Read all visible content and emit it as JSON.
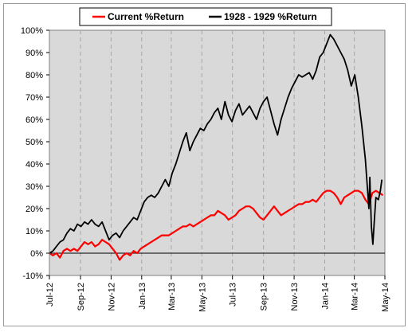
{
  "chart_data": {
    "type": "line",
    "title": "",
    "xlabel": "",
    "ylabel": "",
    "ylim": [
      -10,
      100
    ],
    "y_ticks": [
      -10,
      0,
      10,
      20,
      30,
      40,
      50,
      60,
      70,
      80,
      90,
      100
    ],
    "y_tick_labels": [
      "-10%",
      "0%",
      "10%",
      "20%",
      "30%",
      "40%",
      "50%",
      "60%",
      "70%",
      "80%",
      "90%",
      "100%"
    ],
    "x_tick_labels": [
      "Jul-12",
      "Sep-12",
      "Nov-12",
      "Jan-13",
      "Mar-13",
      "May-13",
      "Jul-13",
      "Sep-13",
      "Nov-13",
      "Jan-14",
      "Mar-14",
      "May-14"
    ],
    "x_ticks": [
      "2012-07-01",
      "2012-09-01",
      "2012-11-01",
      "2013-01-01",
      "2013-03-01",
      "2013-05-01",
      "2013-07-01",
      "2013-09-01",
      "2013-11-01",
      "2014-01-01",
      "2014-03-01",
      "2014-05-01"
    ],
    "xlim": [
      "2012-07-01",
      "2014-05-01"
    ],
    "grid": "vertical dashed",
    "legend_position": "top",
    "plot_background": "#d9d9d9",
    "series": [
      {
        "name": "Current %Return",
        "color": "#ff0000",
        "points": [
          [
            "2012-07-01",
            0
          ],
          [
            "2012-07-08",
            -1
          ],
          [
            "2012-07-15",
            0
          ],
          [
            "2012-07-22",
            -2
          ],
          [
            "2012-07-29",
            1
          ],
          [
            "2012-08-05",
            2
          ],
          [
            "2012-08-12",
            1
          ],
          [
            "2012-08-19",
            2
          ],
          [
            "2012-08-26",
            1
          ],
          [
            "2012-09-02",
            3
          ],
          [
            "2012-09-09",
            5
          ],
          [
            "2012-09-16",
            4
          ],
          [
            "2012-09-23",
            5
          ],
          [
            "2012-09-30",
            3
          ],
          [
            "2012-10-07",
            4
          ],
          [
            "2012-10-14",
            6
          ],
          [
            "2012-10-21",
            5
          ],
          [
            "2012-10-28",
            4
          ],
          [
            "2012-11-04",
            2
          ],
          [
            "2012-11-11",
            0
          ],
          [
            "2012-11-18",
            -3
          ],
          [
            "2012-11-25",
            -1
          ],
          [
            "2012-12-02",
            0
          ],
          [
            "2012-12-09",
            -1
          ],
          [
            "2012-12-16",
            1
          ],
          [
            "2012-12-23",
            0
          ],
          [
            "2012-12-30",
            2
          ],
          [
            "2013-01-06",
            3
          ],
          [
            "2013-01-13",
            4
          ],
          [
            "2013-01-20",
            5
          ],
          [
            "2013-01-27",
            6
          ],
          [
            "2013-02-03",
            7
          ],
          [
            "2013-02-10",
            8
          ],
          [
            "2013-02-17",
            8
          ],
          [
            "2013-02-24",
            8
          ],
          [
            "2013-03-03",
            9
          ],
          [
            "2013-03-10",
            10
          ],
          [
            "2013-03-17",
            11
          ],
          [
            "2013-03-24",
            12
          ],
          [
            "2013-03-31",
            12
          ],
          [
            "2013-04-07",
            13
          ],
          [
            "2013-04-14",
            12
          ],
          [
            "2013-04-21",
            13
          ],
          [
            "2013-04-28",
            14
          ],
          [
            "2013-05-05",
            15
          ],
          [
            "2013-05-12",
            16
          ],
          [
            "2013-05-19",
            17
          ],
          [
            "2013-05-26",
            17
          ],
          [
            "2013-06-02",
            19
          ],
          [
            "2013-06-09",
            18
          ],
          [
            "2013-06-16",
            17
          ],
          [
            "2013-06-23",
            15
          ],
          [
            "2013-06-30",
            16
          ],
          [
            "2013-07-07",
            17
          ],
          [
            "2013-07-14",
            19
          ],
          [
            "2013-07-21",
            20
          ],
          [
            "2013-07-28",
            21
          ],
          [
            "2013-08-04",
            21
          ],
          [
            "2013-08-11",
            20
          ],
          [
            "2013-08-18",
            18
          ],
          [
            "2013-08-25",
            16
          ],
          [
            "2013-09-01",
            15
          ],
          [
            "2013-09-08",
            17
          ],
          [
            "2013-09-15",
            19
          ],
          [
            "2013-09-22",
            21
          ],
          [
            "2013-09-29",
            19
          ],
          [
            "2013-10-06",
            17
          ],
          [
            "2013-10-13",
            18
          ],
          [
            "2013-10-20",
            19
          ],
          [
            "2013-10-27",
            20
          ],
          [
            "2013-11-03",
            21
          ],
          [
            "2013-11-10",
            22
          ],
          [
            "2013-11-17",
            22
          ],
          [
            "2013-11-24",
            23
          ],
          [
            "2013-12-01",
            23
          ],
          [
            "2013-12-08",
            24
          ],
          [
            "2013-12-15",
            23
          ],
          [
            "2013-12-22",
            25
          ],
          [
            "2013-12-29",
            27
          ],
          [
            "2014-01-05",
            28
          ],
          [
            "2014-01-12",
            28
          ],
          [
            "2014-01-19",
            27
          ],
          [
            "2014-01-26",
            25
          ],
          [
            "2014-02-02",
            22
          ],
          [
            "2014-02-09",
            25
          ],
          [
            "2014-02-16",
            26
          ],
          [
            "2014-02-23",
            27
          ],
          [
            "2014-03-02",
            28
          ],
          [
            "2014-03-09",
            28
          ],
          [
            "2014-03-16",
            27
          ],
          [
            "2014-03-23",
            24
          ],
          [
            "2014-03-30",
            22
          ],
          [
            "2014-04-06",
            27
          ],
          [
            "2014-04-13",
            28
          ],
          [
            "2014-04-20",
            27
          ],
          [
            "2014-04-27",
            26
          ]
        ]
      },
      {
        "name": "1928 - 1929 %Return",
        "color": "#000000",
        "points": [
          [
            "2012-07-01",
            0
          ],
          [
            "2012-07-08",
            1
          ],
          [
            "2012-07-15",
            3
          ],
          [
            "2012-07-22",
            5
          ],
          [
            "2012-07-29",
            6
          ],
          [
            "2012-08-05",
            9
          ],
          [
            "2012-08-12",
            11
          ],
          [
            "2012-08-19",
            10
          ],
          [
            "2012-08-26",
            13
          ],
          [
            "2012-09-02",
            12
          ],
          [
            "2012-09-09",
            14
          ],
          [
            "2012-09-16",
            13
          ],
          [
            "2012-09-23",
            15
          ],
          [
            "2012-09-30",
            13
          ],
          [
            "2012-10-07",
            12
          ],
          [
            "2012-10-14",
            14
          ],
          [
            "2012-10-21",
            10
          ],
          [
            "2012-10-28",
            6
          ],
          [
            "2012-11-04",
            8
          ],
          [
            "2012-11-11",
            9
          ],
          [
            "2012-11-18",
            7
          ],
          [
            "2012-11-25",
            10
          ],
          [
            "2012-12-02",
            12
          ],
          [
            "2012-12-09",
            14
          ],
          [
            "2012-12-16",
            16
          ],
          [
            "2012-12-23",
            15
          ],
          [
            "2012-12-30",
            19
          ],
          [
            "2013-01-06",
            23
          ],
          [
            "2013-01-13",
            25
          ],
          [
            "2013-01-20",
            26
          ],
          [
            "2013-01-27",
            25
          ],
          [
            "2013-02-03",
            27
          ],
          [
            "2013-02-10",
            30
          ],
          [
            "2013-02-17",
            33
          ],
          [
            "2013-02-24",
            30
          ],
          [
            "2013-03-03",
            36
          ],
          [
            "2013-03-10",
            40
          ],
          [
            "2013-03-17",
            45
          ],
          [
            "2013-03-24",
            50
          ],
          [
            "2013-03-31",
            54
          ],
          [
            "2013-04-07",
            46
          ],
          [
            "2013-04-14",
            50
          ],
          [
            "2013-04-21",
            53
          ],
          [
            "2013-04-28",
            56
          ],
          [
            "2013-05-05",
            55
          ],
          [
            "2013-05-12",
            58
          ],
          [
            "2013-05-19",
            60
          ],
          [
            "2013-05-26",
            63
          ],
          [
            "2013-06-02",
            65
          ],
          [
            "2013-06-09",
            60
          ],
          [
            "2013-06-16",
            68
          ],
          [
            "2013-06-23",
            62
          ],
          [
            "2013-06-30",
            59
          ],
          [
            "2013-07-07",
            64
          ],
          [
            "2013-07-14",
            67
          ],
          [
            "2013-07-21",
            62
          ],
          [
            "2013-07-28",
            64
          ],
          [
            "2013-08-04",
            66
          ],
          [
            "2013-08-11",
            63
          ],
          [
            "2013-08-18",
            60
          ],
          [
            "2013-08-25",
            65
          ],
          [
            "2013-09-01",
            68
          ],
          [
            "2013-09-08",
            70
          ],
          [
            "2013-09-15",
            64
          ],
          [
            "2013-09-22",
            58
          ],
          [
            "2013-09-29",
            53
          ],
          [
            "2013-10-06",
            60
          ],
          [
            "2013-10-13",
            65
          ],
          [
            "2013-10-20",
            70
          ],
          [
            "2013-10-27",
            74
          ],
          [
            "2013-11-03",
            77
          ],
          [
            "2013-11-10",
            80
          ],
          [
            "2013-11-17",
            79
          ],
          [
            "2013-11-24",
            80
          ],
          [
            "2013-12-01",
            81
          ],
          [
            "2013-12-08",
            78
          ],
          [
            "2013-12-15",
            82
          ],
          [
            "2013-12-22",
            88
          ],
          [
            "2013-12-29",
            90
          ],
          [
            "2014-01-05",
            94
          ],
          [
            "2014-01-12",
            98
          ],
          [
            "2014-01-19",
            96
          ],
          [
            "2014-01-26",
            93
          ],
          [
            "2014-02-02",
            90
          ],
          [
            "2014-02-09",
            87
          ],
          [
            "2014-02-16",
            82
          ],
          [
            "2014-02-23",
            75
          ],
          [
            "2014-03-02",
            80
          ],
          [
            "2014-03-09",
            70
          ],
          [
            "2014-03-16",
            57
          ],
          [
            "2014-03-23",
            42
          ],
          [
            "2014-03-30",
            20
          ],
          [
            "2014-04-01",
            34
          ],
          [
            "2014-04-04",
            12
          ],
          [
            "2014-04-07",
            4
          ],
          [
            "2014-04-10",
            15
          ],
          [
            "2014-04-13",
            25
          ],
          [
            "2014-04-18",
            24
          ],
          [
            "2014-04-22",
            28
          ],
          [
            "2014-04-25",
            33
          ]
        ]
      }
    ]
  }
}
